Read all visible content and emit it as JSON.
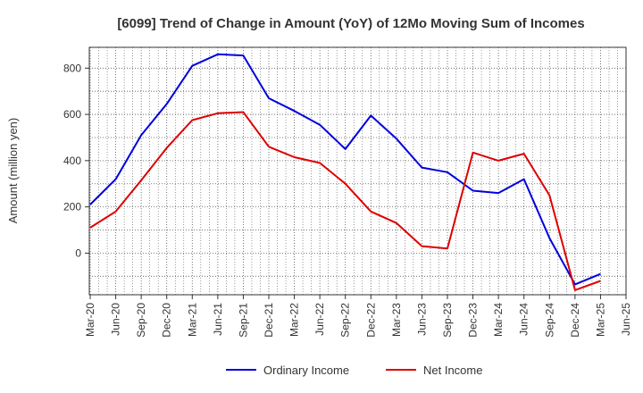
{
  "chart_data": {
    "type": "line",
    "title": "[6099]  Trend of Change in Amount (YoY) of 12Mo Moving Sum of Incomes",
    "xlabel": "",
    "ylabel": "Amount (million yen)",
    "ylim": [
      -180,
      890
    ],
    "yticks": [
      0,
      200,
      400,
      600,
      800
    ],
    "grid": true,
    "legend_position": "bottom",
    "x_tick_labels": [
      "Mar-20",
      "Jun-20",
      "Sep-20",
      "Dec-20",
      "Mar-21",
      "Jun-21",
      "Sep-21",
      "Dec-21",
      "Mar-22",
      "Jun-22",
      "Sep-22",
      "Dec-22",
      "Mar-23",
      "Jun-23",
      "Sep-23",
      "Dec-23",
      "Mar-24",
      "Jun-24",
      "Sep-24",
      "Dec-24",
      "Mar-25",
      "Jun-25"
    ],
    "categories": [
      "Mar-20",
      "Jun-20",
      "Sep-20",
      "Dec-20",
      "Mar-21",
      "Jun-21",
      "Sep-21",
      "Dec-21",
      "Mar-22",
      "Jun-22",
      "Sep-22",
      "Dec-22",
      "Mar-23",
      "Jun-23",
      "Sep-23",
      "Dec-23",
      "Mar-24",
      "Jun-24",
      "Sep-24",
      "Dec-24",
      "Mar-25"
    ],
    "series": [
      {
        "name": "Ordinary Income",
        "color": "#0000dd",
        "values": [
          210,
          320,
          510,
          645,
          810,
          860,
          855,
          670,
          615,
          555,
          450,
          595,
          495,
          370,
          350,
          270,
          260,
          320,
          65,
          -135,
          -90
        ]
      },
      {
        "name": "Net Income",
        "color": "#dd0000",
        "values": [
          110,
          180,
          315,
          455,
          575,
          605,
          610,
          460,
          415,
          390,
          300,
          180,
          130,
          30,
          20,
          435,
          400,
          430,
          250,
          -160,
          -120
        ]
      }
    ]
  }
}
